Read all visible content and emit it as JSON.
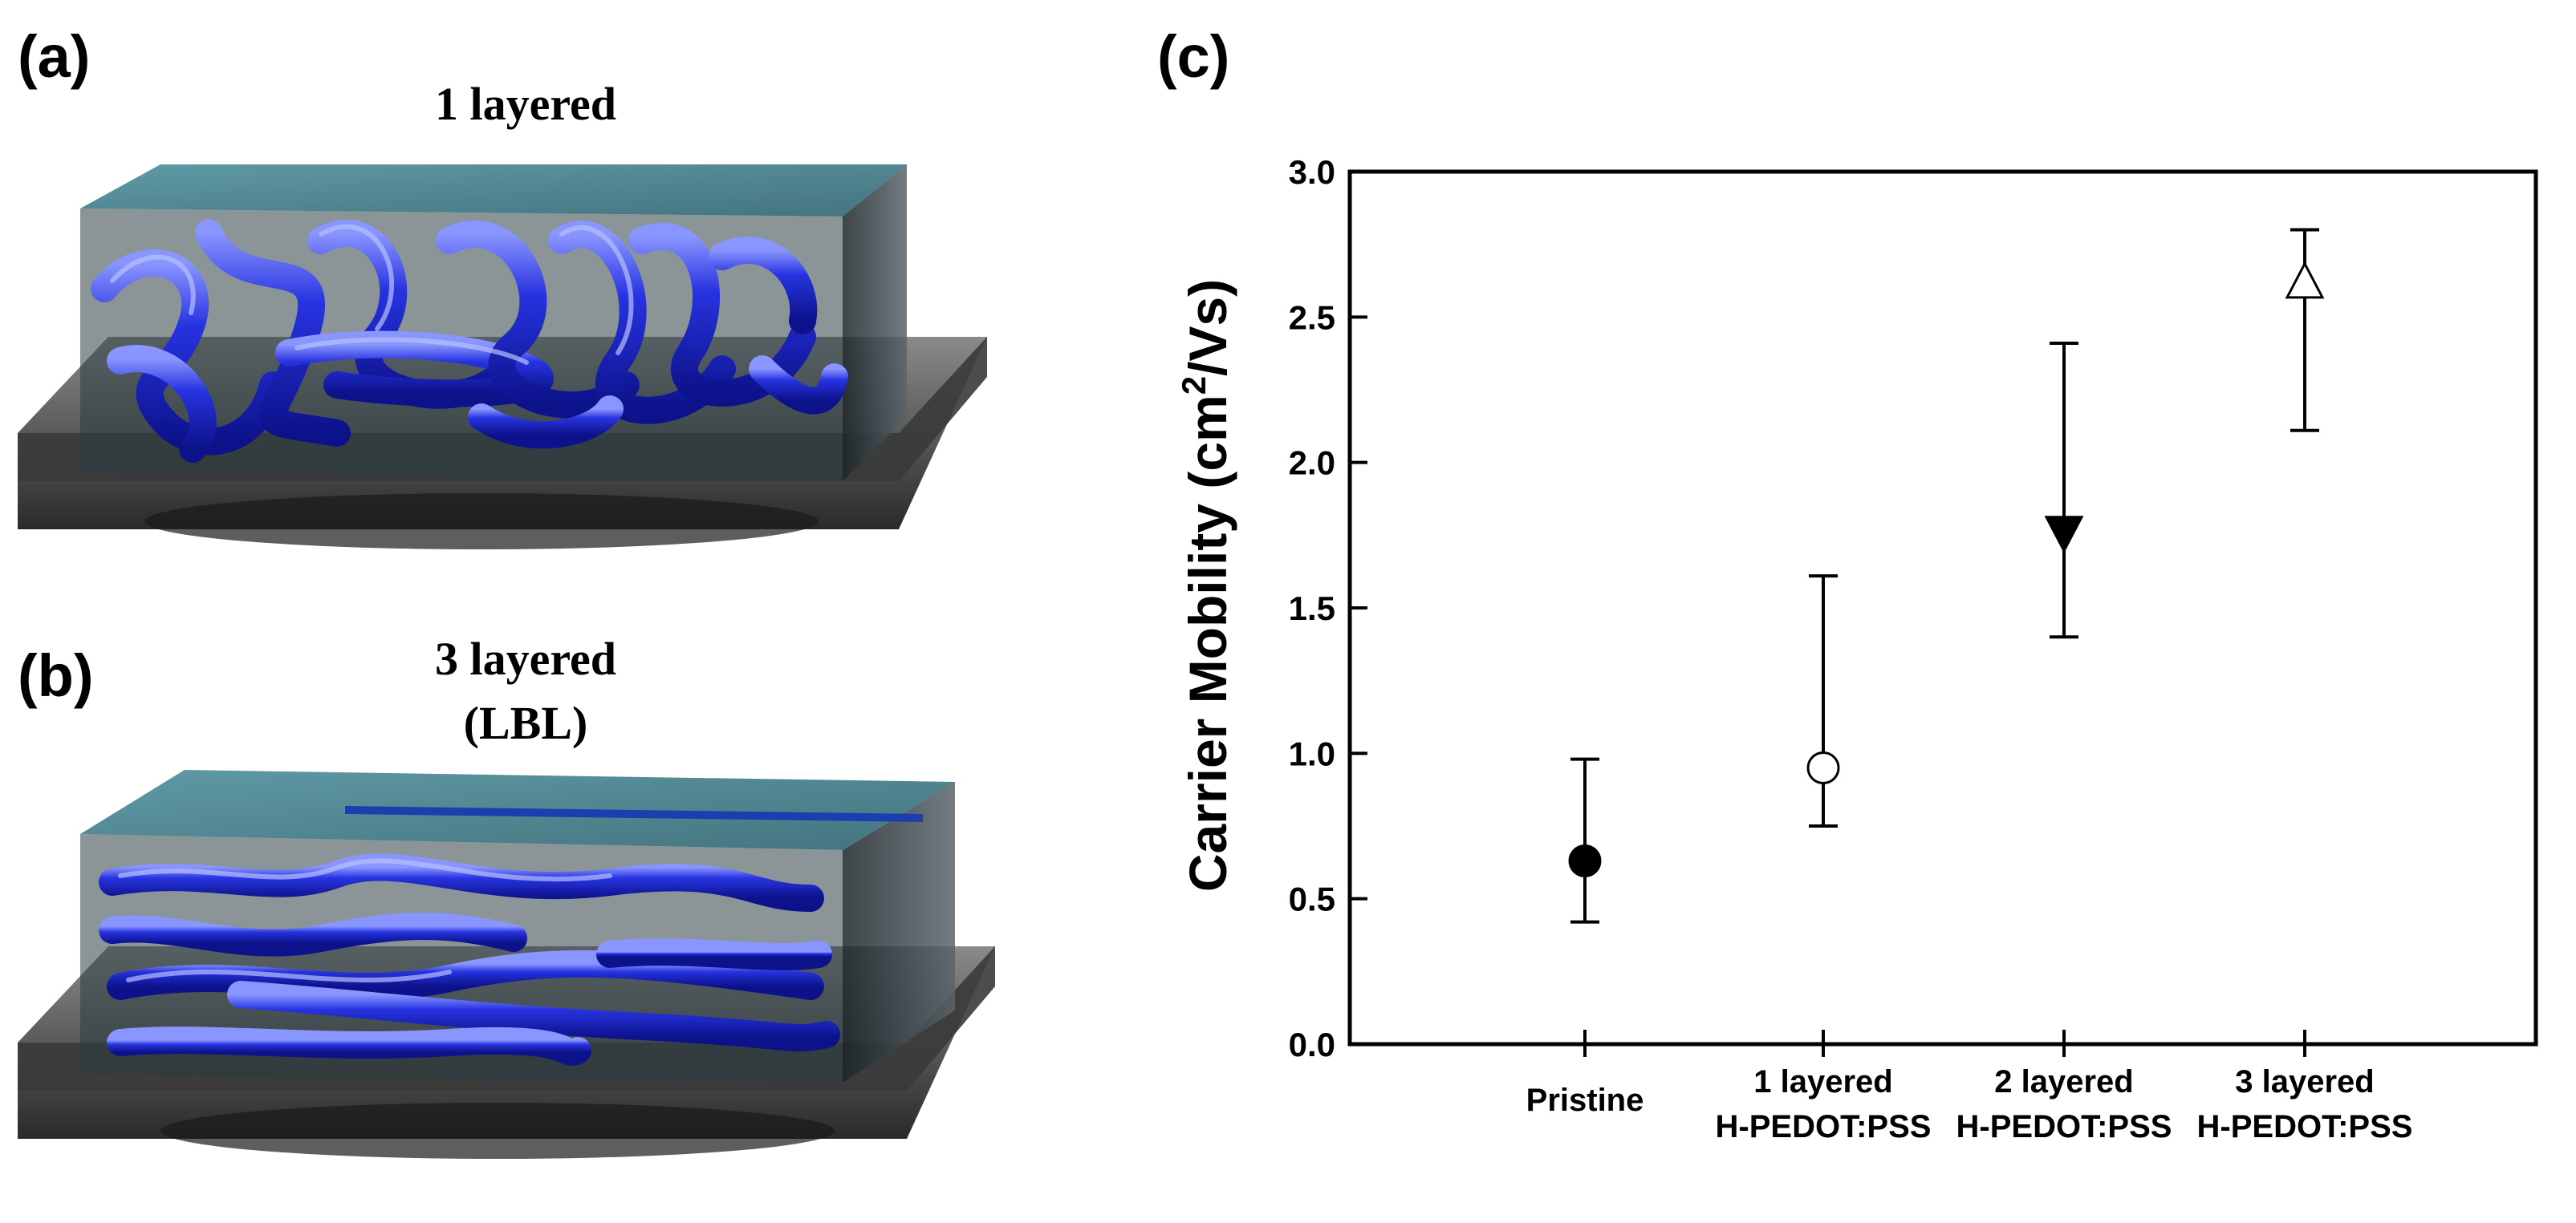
{
  "panels": {
    "a": {
      "letter": "(a)",
      "title": "1 layered"
    },
    "b": {
      "letter": "(b)",
      "title_line1": "3 layered",
      "title_line2": "(LBL)"
    },
    "c": {
      "letter": "(c)"
    }
  },
  "colors": {
    "tube": "#1f2bd6",
    "tube_highlight": "#7f8cff",
    "film_top": "#3d7f8c",
    "film_side": "#2a3a40",
    "substrate": "#6a6a6a"
  },
  "chart_data": {
    "type": "scatter",
    "title": "",
    "ylabel_prefix": "Carrier Mobility (cm",
    "ylabel_sup": "2",
    "ylabel_suffix": "/Vs)",
    "xlabel": "",
    "ylim": [
      0.0,
      3.0
    ],
    "yticks": [
      "0.0",
      "0.5",
      "1.0",
      "1.5",
      "2.0",
      "2.5",
      "3.0"
    ],
    "categories": [
      {
        "line1": "Pristine",
        "line2": ""
      },
      {
        "line1": "1 layered",
        "line2": "H-PEDOT:PSS"
      },
      {
        "line1": "2 layered",
        "line2": "H-PEDOT:PSS"
      },
      {
        "line1": "3 layered",
        "line2": "H-PEDOT:PSS"
      }
    ],
    "points": [
      {
        "value": 0.63,
        "err_low": 0.42,
        "err_high": 0.98,
        "marker": "filled-circle"
      },
      {
        "value": 0.95,
        "err_low": 0.75,
        "err_high": 1.61,
        "marker": "open-circle"
      },
      {
        "value": 1.76,
        "err_low": 1.4,
        "err_high": 2.41,
        "marker": "filled-triangle-down"
      },
      {
        "value": 2.62,
        "err_low": 2.11,
        "err_high": 2.8,
        "marker": "open-triangle-up"
      }
    ],
    "grid": false,
    "legend": "none"
  }
}
